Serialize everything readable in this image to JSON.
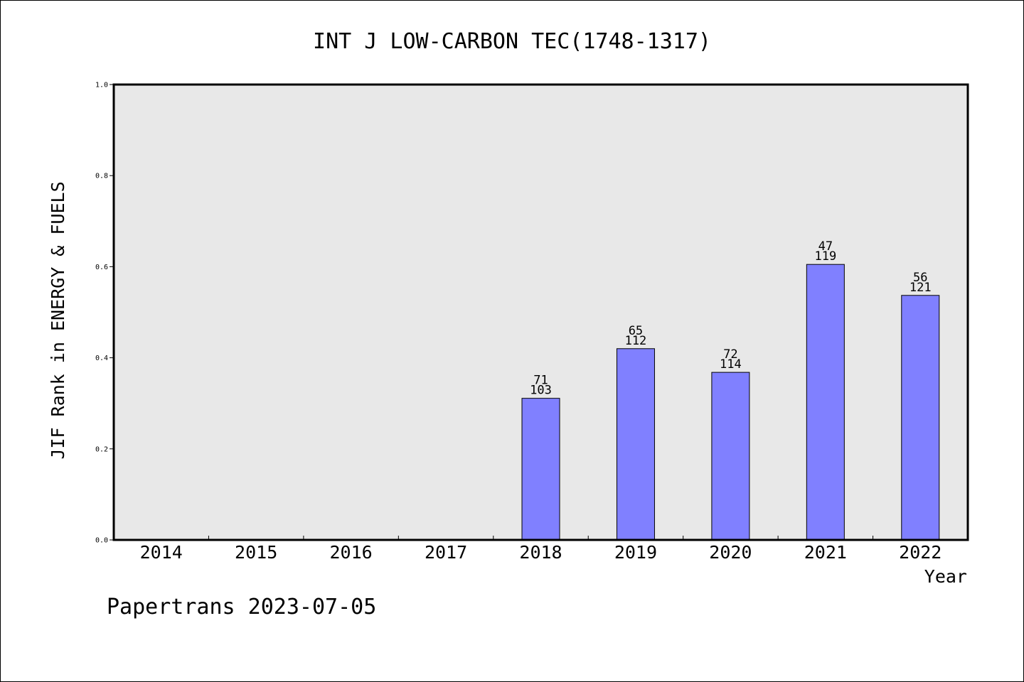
{
  "chart_data": {
    "type": "bar",
    "title": "INT J LOW-CARBON TEC(1748-1317)",
    "xlabel": "Year",
    "ylabel": "JIF Rank in ENERGY & FUELS",
    "ylim": [
      0,
      1.0
    ],
    "y_ticks": [
      "0.0",
      "0.2",
      "0.4",
      "0.6",
      "0.8",
      "1.0"
    ],
    "grid": false,
    "categories": [
      "2014",
      "2015",
      "2016",
      "2017",
      "2018",
      "2019",
      "2020",
      "2021",
      "2022"
    ],
    "values": [
      null,
      null,
      null,
      null,
      0.311,
      0.42,
      0.368,
      0.605,
      0.537
    ],
    "rank_labels": [
      "",
      "",
      "",
      "",
      "71",
      "65",
      "72",
      "47",
      "56"
    ],
    "total_labels": [
      "",
      "",
      "",
      "",
      "103",
      "112",
      "114",
      "119",
      "121"
    ],
    "bar_color": "#8080ff",
    "plot_background": "#e8e8e8"
  },
  "footer": {
    "text": "Papertrans 2023-07-05"
  }
}
